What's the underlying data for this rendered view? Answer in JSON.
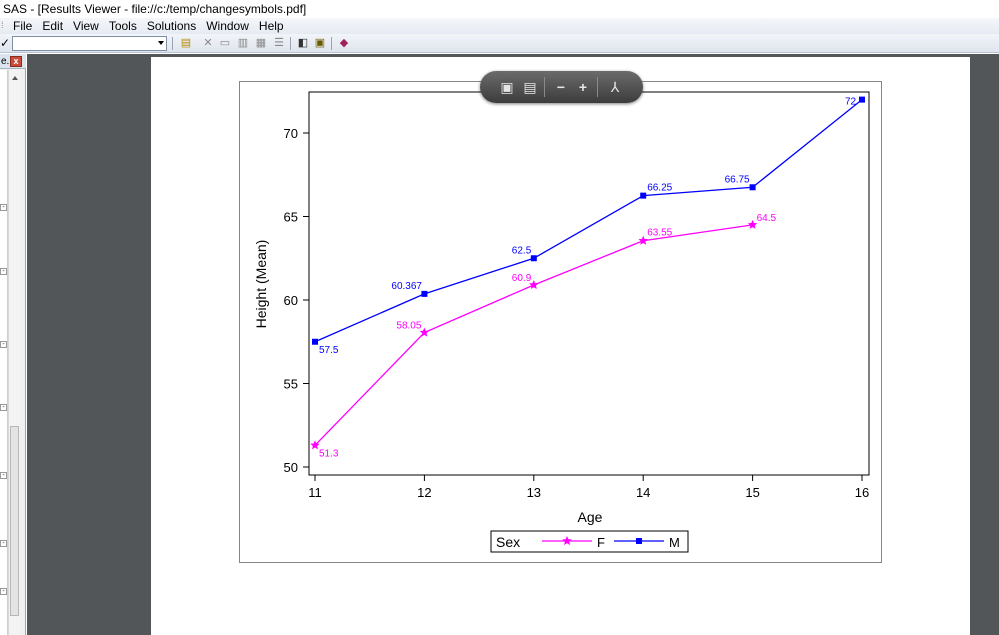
{
  "window": {
    "title": "SAS - [Results Viewer - file://c:/temp/changesymbols.pdf]"
  },
  "menu": [
    "File",
    "Edit",
    "View",
    "Tools",
    "Solutions",
    "Window",
    "Help"
  ],
  "left_panel": {
    "header": "e..."
  },
  "colors": {
    "F": "#ff00ff",
    "M": "#0000ff",
    "viewer_bg": "#525659"
  },
  "chart_data": {
    "type": "line",
    "xlabel": "Age",
    "ylabel": "Height (Mean)",
    "x": [
      11,
      12,
      13,
      14,
      15,
      16
    ],
    "xlim": [
      11,
      16
    ],
    "ylim": [
      50,
      72
    ],
    "yticks": [
      50,
      55,
      60,
      65,
      70
    ],
    "series": [
      {
        "name": "F",
        "marker": "star",
        "color": "#ff00ff",
        "points": [
          [
            11,
            51.3
          ],
          [
            12,
            58.05
          ],
          [
            13,
            60.9
          ],
          [
            14,
            63.55
          ],
          [
            15,
            64.5
          ]
        ],
        "labels": [
          "51.3",
          "58.05",
          "60.9",
          "63.55",
          "64.5"
        ]
      },
      {
        "name": "M",
        "marker": "square",
        "color": "#0000ff",
        "points": [
          [
            11,
            57.5
          ],
          [
            12,
            60.367
          ],
          [
            13,
            62.5
          ],
          [
            14,
            66.25
          ],
          [
            15,
            66.75
          ],
          [
            16,
            72
          ]
        ],
        "labels": [
          "57.5",
          "60.367",
          "62.5",
          "66.25",
          "66.75",
          "72"
        ]
      }
    ],
    "legend": {
      "title": "Sex",
      "placement": "bottom"
    },
    "grid": false
  }
}
